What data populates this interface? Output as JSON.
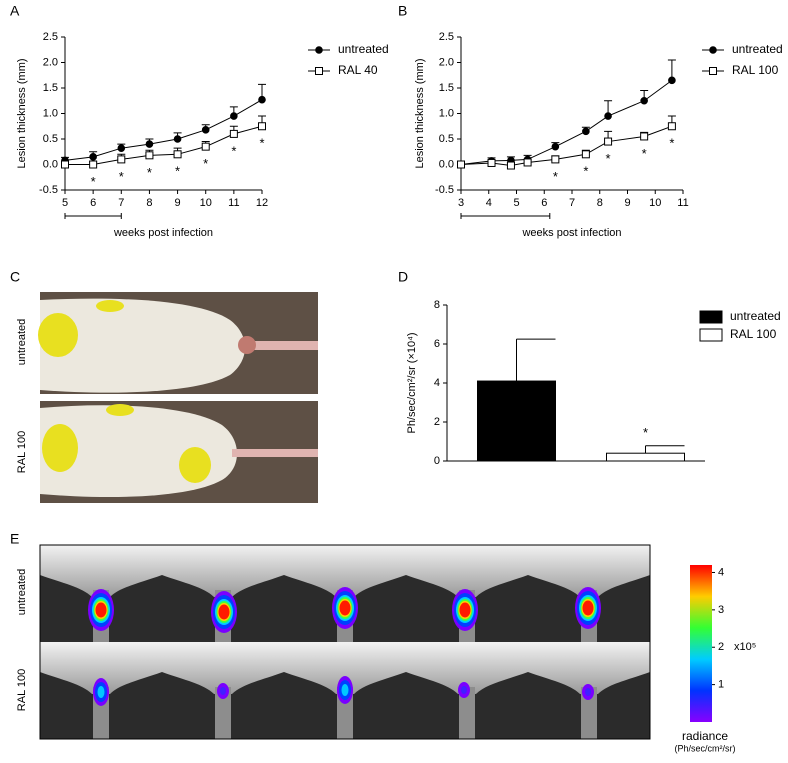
{
  "panel_labels": [
    "A",
    "B",
    "C",
    "D",
    "E"
  ],
  "chart_data": [
    {
      "type": "line",
      "xlabel": "weeks post infection",
      "ylabel": "Lesion thickness (mm)",
      "x": [
        5,
        6,
        7,
        8,
        9,
        10,
        11,
        12
      ],
      "xlim": [
        5,
        12
      ],
      "xticks": [
        5,
        6,
        7,
        8,
        9,
        10,
        11,
        12
      ],
      "ylim": [
        -0.5,
        2.5
      ],
      "yticks": [
        -0.5,
        {
          "value": 0,
          "label": "0.0"
        },
        0.5,
        {
          "value": 1,
          "label": "1.0"
        },
        1.5,
        {
          "value": 2,
          "label": "2.0"
        },
        2.5
      ],
      "treatment_period": [
        5,
        7
      ],
      "series": [
        {
          "name": "untreated",
          "color": "#000000",
          "marker": "circle",
          "marker_fill": "#000000",
          "values": [
            0.08,
            0.15,
            0.32,
            0.4,
            0.5,
            0.68,
            0.95,
            1.27
          ],
          "errors": [
            0.06,
            0.1,
            0.08,
            0.1,
            0.12,
            0.1,
            0.18,
            0.3
          ]
        },
        {
          "name": "RAL 40",
          "color": "#000000",
          "marker": "square",
          "marker_fill": "#ffffff",
          "values": [
            0.0,
            0.0,
            0.1,
            0.18,
            0.2,
            0.35,
            0.6,
            0.75
          ],
          "errors": [
            0.05,
            0.05,
            0.1,
            0.1,
            0.12,
            0.1,
            0.15,
            0.2
          ]
        }
      ],
      "sig_labels": [
        null,
        "*",
        "*",
        "*",
        "*",
        "*",
        "*",
        "*"
      ]
    },
    {
      "type": "line",
      "xlabel": "weeks post infection",
      "ylabel": "Lesion thickness (mm)",
      "x": [
        3,
        4.1,
        4.8,
        5.4,
        6.4,
        7.5,
        8.3,
        9.6,
        10.6
      ],
      "xlim": [
        3,
        11
      ],
      "xticks": [
        3,
        4,
        5,
        6,
        7,
        8,
        9,
        10,
        11
      ],
      "ylim": [
        -0.5,
        2.5
      ],
      "yticks": [
        -0.5,
        {
          "value": 0,
          "label": "0.0"
        },
        0.5,
        {
          "value": 1,
          "label": "1.0"
        },
        1.5,
        {
          "value": 2,
          "label": "2.0"
        },
        2.5
      ],
      "treatment_period": [
        3,
        6.2
      ],
      "series": [
        {
          "name": "untreated",
          "color": "#000000",
          "marker": "circle",
          "marker_fill": "#000000",
          "values": [
            0.0,
            0.07,
            0.08,
            0.1,
            0.35,
            0.65,
            0.95,
            1.25,
            1.65
          ],
          "errors": [
            0.03,
            0.06,
            0.07,
            0.08,
            0.08,
            0.08,
            0.3,
            0.2,
            0.4
          ]
        },
        {
          "name": "RAL 100",
          "color": "#000000",
          "marker": "square",
          "marker_fill": "#ffffff",
          "values": [
            0.0,
            0.03,
            -0.02,
            0.04,
            0.1,
            0.2,
            0.45,
            0.55,
            0.75
          ],
          "errors": [
            0.03,
            0.05,
            0.05,
            0.05,
            0.07,
            0.08,
            0.2,
            0.08,
            0.2
          ]
        }
      ],
      "sig_labels": [
        null,
        null,
        null,
        null,
        "*",
        "*",
        "*",
        "*",
        "*"
      ]
    },
    {
      "type": "bar",
      "ylabel": "Ph/sec/cm²/sr (×10⁴)",
      "categories": [
        null
      ],
      "ylim": [
        0,
        8
      ],
      "yticks": [
        0,
        2,
        4,
        6,
        8
      ],
      "series": [
        {
          "name": "untreated",
          "color": "#000000",
          "values": [
            4.1
          ],
          "errors": [
            2.15
          ],
          "sig_label": null
        },
        {
          "name": "RAL 100",
          "color": "#ffffff",
          "values": [
            0.4
          ],
          "errors": [
            0.38
          ],
          "sig_label": "*"
        }
      ]
    }
  ],
  "photos": {
    "row_labels": [
      "untreated",
      "RAL 100"
    ]
  },
  "imaging": {
    "row_labels": [
      "untreated",
      "RAL 100"
    ],
    "colorbar": {
      "lim": [
        0,
        4.2
      ],
      "ticks": [
        1,
        2,
        3,
        4
      ],
      "multiplier": "x10⁵",
      "title": "radiance",
      "unit": "(Ph/sec/cm²/sr)"
    }
  }
}
